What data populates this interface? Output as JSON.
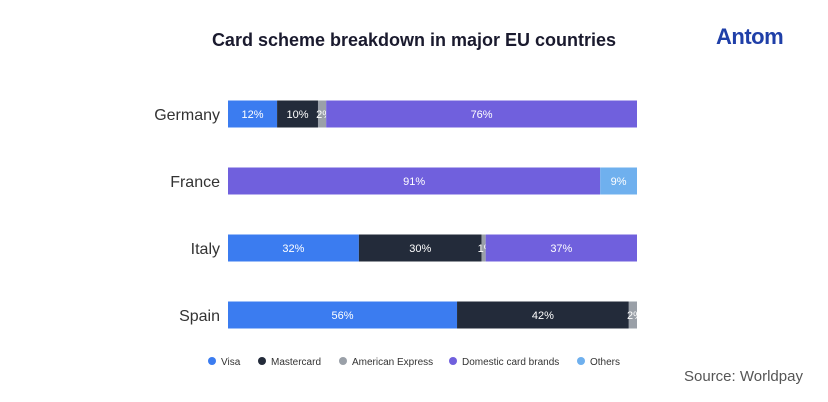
{
  "header": {
    "title": "Card scheme breakdown in major EU countries",
    "logo_text": "Antom",
    "source": "Source: Worldpay"
  },
  "colors": {
    "visa": "#3b7cf0",
    "mastercard": "#232b3a",
    "amex": "#9aa0a8",
    "domestic": "#7060dd",
    "others": "#6fb0ee"
  },
  "chart_data": {
    "type": "bar",
    "orientation": "horizontal",
    "stacked": true,
    "normalized": true,
    "title": "Card scheme breakdown in major EU countries",
    "categories": [
      "Germany",
      "France",
      "Italy",
      "Spain"
    ],
    "series": [
      {
        "name": "Visa",
        "key": "visa",
        "values": [
          12,
          0,
          32,
          56
        ]
      },
      {
        "name": "Mastercard",
        "key": "mastercard",
        "values": [
          10,
          0,
          30,
          42
        ]
      },
      {
        "name": "American Express",
        "key": "amex",
        "values": [
          2,
          0,
          1,
          2
        ]
      },
      {
        "name": "Domestic card brands",
        "key": "domestic",
        "values": [
          76,
          91,
          37,
          0
        ]
      },
      {
        "name": "Others",
        "key": "others",
        "values": [
          0,
          9,
          0,
          0
        ]
      }
    ],
    "xlim": [
      0,
      100
    ],
    "legend_position": "bottom",
    "source": "Source: Worldpay"
  }
}
